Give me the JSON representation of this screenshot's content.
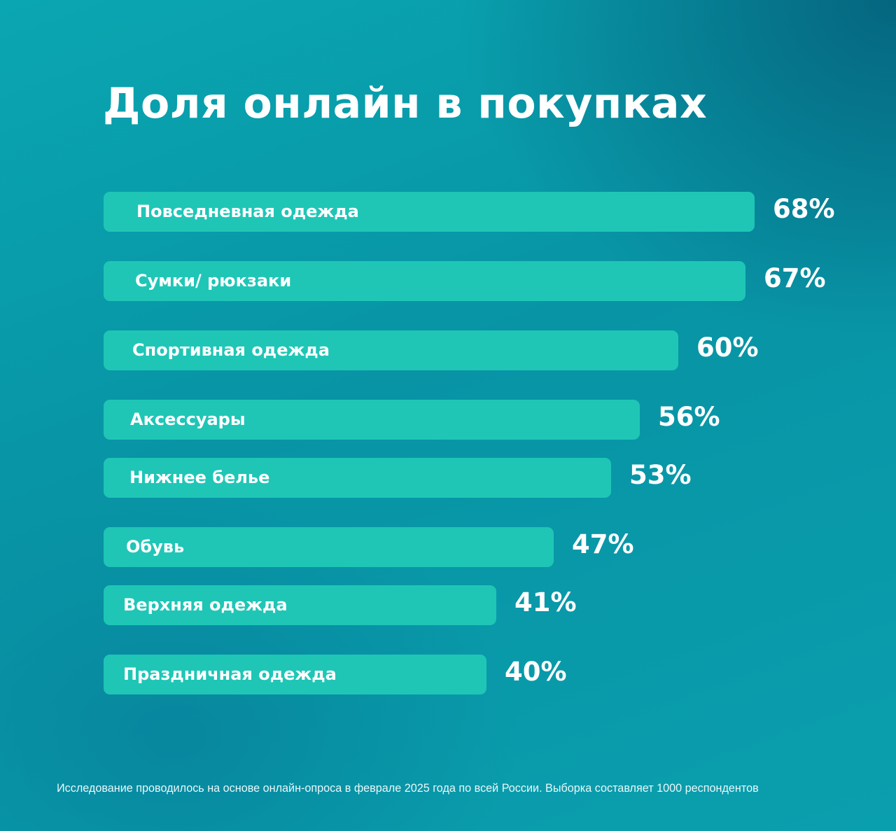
{
  "chart_data": {
    "type": "bar",
    "orientation": "horizontal",
    "title": "Доля онлайн в покупках",
    "categories": [
      "Повседневная одежда",
      "Сумки/ рюкзаки",
      "Спортивная одежда",
      "Аксессуары",
      "Нижнее белье",
      "Обувь",
      "Верхняя одежда",
      "Праздничная одежда"
    ],
    "values": [
      68,
      67,
      60,
      56,
      53,
      47,
      41,
      40
    ],
    "value_labels": [
      "68%",
      "67%",
      "60%",
      "56%",
      "53%",
      "47%",
      "41%",
      "40%"
    ],
    "unit": "%",
    "grid": false,
    "legend": "none"
  },
  "footnote": "Исследование проводилось на основе онлайн-опроса в феврале 2025 года по всей России. Выборка составляет 1000 респондентов",
  "colors": {
    "bar": "#1fc6b6",
    "background": "#0a9fae",
    "text": "#ffffff"
  }
}
